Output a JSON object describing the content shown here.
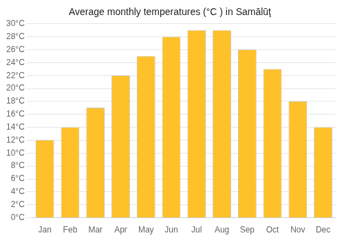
{
  "chart_data": {
    "type": "bar",
    "title": "Average monthly temperatures (°C ) in Samālūţ",
    "categories": [
      "Jan",
      "Feb",
      "Mar",
      "Apr",
      "May",
      "Jun",
      "Jul",
      "Aug",
      "Sep",
      "Oct",
      "Nov",
      "Dec"
    ],
    "values": [
      12,
      14,
      17,
      22,
      25,
      28,
      29,
      29,
      26,
      23,
      18,
      14
    ],
    "color": "#FFC12A",
    "ylim": [
      0,
      30
    ],
    "yticks": [
      {
        "value": 0,
        "label": "0°C"
      },
      {
        "value": 2,
        "label": "2°C"
      },
      {
        "value": 4,
        "label": "4°C"
      },
      {
        "value": 6,
        "label": "6°C"
      },
      {
        "value": 8,
        "label": "8°C"
      },
      {
        "value": 10,
        "label": "10°C"
      },
      {
        "value": 12,
        "label": "12°C"
      },
      {
        "value": 14,
        "label": "14°C"
      },
      {
        "value": 16,
        "label": "16°C"
      },
      {
        "value": 18,
        "label": "18°C"
      },
      {
        "value": 20,
        "label": "20°C"
      },
      {
        "value": 22,
        "label": "22°C"
      },
      {
        "value": 24,
        "label": "24°C"
      },
      {
        "value": 26,
        "label": "26°C"
      },
      {
        "value": 28,
        "label": "28°C"
      },
      {
        "value": 30,
        "label": "30°C"
      }
    ],
    "grid": "y"
  }
}
